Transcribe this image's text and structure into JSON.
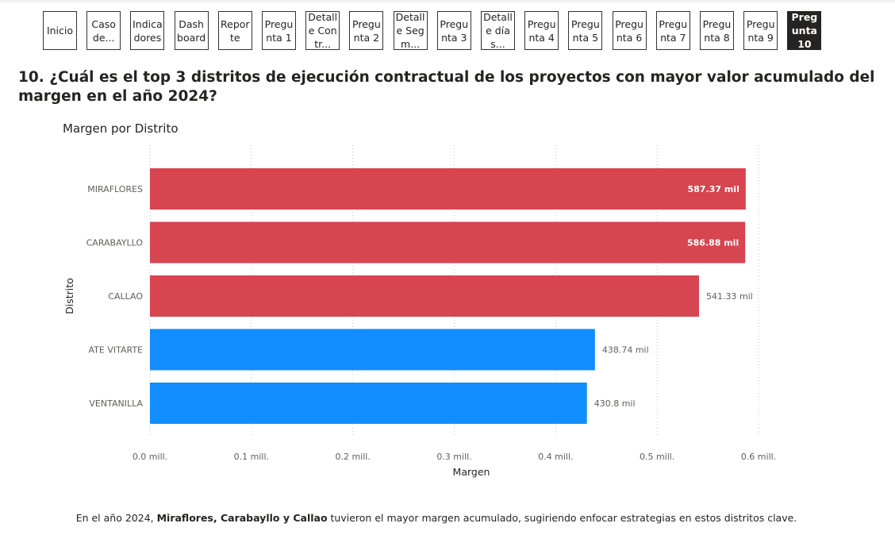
{
  "nav": {
    "buttons": [
      {
        "label": "Inicio",
        "active": false
      },
      {
        "label": "Caso de...",
        "active": false
      },
      {
        "label": "Indicadores",
        "active": false
      },
      {
        "label": "Dashboard",
        "active": false
      },
      {
        "label": "Reporte",
        "active": false
      },
      {
        "label": "Pregunta 1",
        "active": false
      },
      {
        "label": "Detalle Contr...",
        "active": false
      },
      {
        "label": "Pregunta 2",
        "active": false
      },
      {
        "label": "Detalle Segm...",
        "active": false
      },
      {
        "label": "Pregunta 3",
        "active": false
      },
      {
        "label": "Detalle días...",
        "active": false
      },
      {
        "label": "Pregunta 4",
        "active": false
      },
      {
        "label": "Pregunta 5",
        "active": false
      },
      {
        "label": "Pregunta 6",
        "active": false
      },
      {
        "label": "Pregunta 7",
        "active": false
      },
      {
        "label": "Pregunta 8",
        "active": false
      },
      {
        "label": "Pregunta 9",
        "active": false
      },
      {
        "label": "Pregunta 10",
        "active": true
      }
    ]
  },
  "question": "10. ¿Cuál es el top 3 distritos de ejecución contractual de los proyectos con mayor valor acumulado del margen en el año 2024?",
  "footnote": {
    "prefix": "En el año 2024, ",
    "highlight": "Miraflores, Carabayllo y Callao",
    "suffix": " tuvieron el mayor margen acumulado, sugiriendo enfocar estrategias en estos distritos clave."
  },
  "chart_data": {
    "type": "bar",
    "orientation": "horizontal",
    "title": "Margen por Distrito",
    "xlabel": "Margen",
    "ylabel": "Distrito",
    "categories": [
      "MIRAFLORES",
      "CARABAYLLO",
      "CALLAO",
      "ATE VITARTE",
      "VENTANILLA"
    ],
    "values": [
      587370,
      586880,
      541330,
      438740,
      430800
    ],
    "data_labels": [
      "587.37 mil",
      "586.88 mil",
      "541.33 mil",
      "438.74 mil",
      "430.8 mil"
    ],
    "highlight_top": 3,
    "xlim": [
      0,
      600000
    ],
    "xticks": [
      0,
      100000,
      200000,
      300000,
      400000,
      500000,
      600000
    ],
    "xtick_labels": [
      "0.0 mill.",
      "0.1 mill.",
      "0.2 mill.",
      "0.3 mill.",
      "0.4 mill.",
      "0.5 mill.",
      "0.6 mill."
    ],
    "grid": "vertical dotted",
    "colors": {
      "highlight": "#D64550",
      "default": "#118DFF"
    }
  }
}
